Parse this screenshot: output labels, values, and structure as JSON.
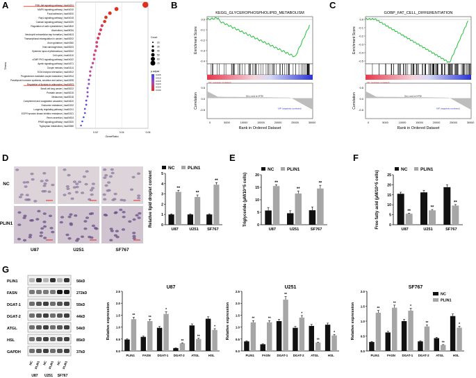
{
  "panel_labels": [
    "A",
    "B",
    "C",
    "D",
    "E",
    "F",
    "G"
  ],
  "panelA": {
    "terms": [
      "PI3K-Akt signaling pathway | hsa04151",
      "MAPK signaling pathway | hsa04010",
      "Focal adhesion | hsa04510",
      "Rap1 signaling pathway | hsa04015",
      "Calcium signaling pathway | hsa04020",
      "Regulation of actin cytoskeleton | hsa04810",
      "Alcoholism | hsa05034",
      "Neutrophil extracellular trap formation | hsa04613",
      "Transcriptional misregulation in cancer | hsa05202",
      "Axon guidance | hsa04360",
      "Viral carcinogenesis | hsa05203",
      "Systemic lupus erythematosus | hsa05322",
      "Cell cycle | hsa04110",
      "cGMP-PKG signaling pathway | hsa04022",
      "Apelin signaling pathway | hsa04371",
      "Oocyte meiosis | hsa04114",
      "ECM-receptor interaction | hsa04512",
      "Progesterone-mediated oocyte maturation | hsa04914",
      "Parathyroid hormone synthesis, secretion and action | hsa04928",
      "Regulation of lipolysis in adipocytes | hsa04923",
      "Small cell lung cancer | hsa05222",
      "Prostate cancer | hsa05215",
      "Melanoma | hsa05218",
      "Complement and coagulation cascades | hsa04610",
      "Endocrine resistance | hsa01522",
      "Longevity regulating pathway | hsa04211",
      "EGFR tyrosine kinase inhibitor resistance | hsa01521",
      "Renin secretion | hsa04924",
      "PPAR signaling pathway | hsa03320",
      "Tryptophan metabolism | hsa00380"
    ],
    "generatio": [
      0.058,
      0.036,
      0.031,
      0.028,
      0.027,
      0.025,
      0.024,
      0.023,
      0.022,
      0.021,
      0.021,
      0.02,
      0.019,
      0.019,
      0.018,
      0.017,
      0.016,
      0.016,
      0.015,
      0.015,
      0.014,
      0.014,
      0.014,
      0.013,
      0.013,
      0.012,
      0.012,
      0.011,
      0.01,
      0.009
    ],
    "count": [
      70,
      44,
      38,
      34,
      33,
      30,
      29,
      28,
      27,
      26,
      26,
      25,
      23,
      23,
      22,
      21,
      20,
      20,
      19,
      19,
      18,
      18,
      17,
      16,
      16,
      15,
      15,
      14,
      13,
      12
    ],
    "xlabel": "GeneRatio",
    "ylabel": "Terms",
    "xticks": [
      "0.02",
      "0.04",
      "0.06"
    ],
    "count_legend_title": "Count",
    "count_legend": [
      "20",
      "30",
      "40",
      "50",
      "60",
      "70"
    ],
    "padj_legend_title": "p.adjust",
    "padj_legend": [
      "0.005",
      "0.010",
      "0.015",
      "0.020",
      "0.025",
      "0.030"
    ]
  },
  "panelB": {
    "title": "KEGG_GLYCEROPHOSPHOLIPID_METABOLISM",
    "ylabel_top": "Enrichment Score",
    "ylabel_bottom": "Correlation",
    "xlabel": "Rank in Ordered Dataset",
    "yticks_top": [
      "0.0",
      "-0.1",
      "-0.2",
      "-0.3",
      "-0.4"
    ],
    "yticks_bottom": [
      "0.5",
      "0.0",
      "-0.5"
    ],
    "xticks": [
      "0",
      "5000",
      "10000",
      "15000",
      "20000",
      "25000",
      "30000"
    ],
    "pos_label": "'NC' (positively correlated)",
    "neg_label": "'SIP' (negatively correlated)",
    "zero_cross": "Zero cross at 14756"
  },
  "panelC": {
    "title": "GOBP_FAT_CELL_DIFFERENTIATION",
    "ylabel_top": "Enrichment Score",
    "ylabel_bottom": "Correlation",
    "xlabel": "Rank in Ordered Dataset",
    "yticks_top": [
      "0.0",
      "-0.1",
      "-0.2",
      "-0.3",
      "-0.4",
      "-0.5"
    ],
    "yticks_bottom": [
      "0.5",
      "0.0",
      "-0.5"
    ],
    "xticks": [
      "0",
      "5000",
      "10000",
      "15000",
      "20000",
      "25000",
      "30000"
    ],
    "pos_label": "'NC' (positively correlated)",
    "neg_label": "'SIP' (negatively correlated)",
    "zero_cross": "Zero cross at 14756"
  },
  "panelD": {
    "row_labels": [
      "NC",
      "PLIN1"
    ],
    "col_labels": [
      "U87",
      "U251",
      "SF767"
    ],
    "chart": {
      "type": "bar",
      "categories": [
        "U87",
        "U251",
        "SF767"
      ],
      "series": [
        {
          "name": "NC",
          "values": [
            1.0,
            1.0,
            1.0
          ]
        },
        {
          "name": "PLIN1",
          "values": [
            3.2,
            2.7,
            3.9
          ]
        }
      ],
      "errors": [
        [
          0.05,
          0.05,
          0.05
        ],
        [
          0.15,
          0.2,
          0.2
        ]
      ],
      "sig": [
        "**",
        "**",
        "**"
      ],
      "ylabel": "Relative lipid droplet content",
      "ylim": [
        0,
        5
      ],
      "yticks": [
        "0",
        "1",
        "2",
        "3",
        "4",
        "5"
      ]
    }
  },
  "panelE": {
    "type": "bar",
    "categories": [
      "U87",
      "U251",
      "SF767"
    ],
    "series": [
      {
        "name": "NC",
        "values": [
          5.7,
          4.6,
          5.8
        ]
      },
      {
        "name": "PLIN1",
        "values": [
          15.5,
          12.5,
          14.5
        ]
      }
    ],
    "errors": [
      [
        1.2,
        1.0,
        1.3
      ],
      [
        0.5,
        1.0,
        1.3
      ]
    ],
    "sig": [
      "**",
      "**",
      "**"
    ],
    "ylabel": "Triglyceride (μM/10^5 cells)",
    "ylim": [
      0,
      20
    ],
    "yticks": [
      "0",
      "5",
      "10",
      "15",
      "20"
    ]
  },
  "panelF": {
    "type": "bar",
    "categories": [
      "U87",
      "U251",
      "SF767"
    ],
    "series": [
      {
        "name": "NC",
        "values": [
          15.5,
          16.2,
          18.8
        ]
      },
      {
        "name": "PLIN1",
        "values": [
          5.5,
          7.2,
          9.6
        ]
      }
    ],
    "errors": [
      [
        0.8,
        1.0,
        1.2
      ],
      [
        0.3,
        0.4,
        0.5
      ]
    ],
    "sig": [
      "**",
      "**",
      "**"
    ],
    "ylabel": "Free fatty acid (μM/10^5 cells)",
    "ylim": [
      0,
      25
    ],
    "yticks": [
      "0",
      "5",
      "10",
      "15",
      "20",
      "25"
    ]
  },
  "panelG": {
    "blot_labels": [
      "PLIN1",
      "FASN",
      "DGAT-1",
      "DGAT-2",
      "ATGL",
      "HSL",
      "GAPDH"
    ],
    "blot_sizes": [
      "56kD",
      "272kD",
      "55kD",
      "44kD",
      "54kD",
      "85kD",
      "37kD"
    ],
    "lane_labels": [
      "NC",
      "PLIN1",
      "NC",
      "PLIN1",
      "NC",
      "PLIN1"
    ],
    "cell_labels": [
      "U87",
      "U251",
      "SF767"
    ],
    "charts": [
      {
        "type": "bar",
        "title": "U87",
        "categories": [
          "PLIN1",
          "FASN",
          "DGAT-1",
          "DGAT-2",
          "ATGL",
          "HSL"
        ],
        "series": [
          {
            "name": "NC",
            "values": [
              0.48,
              0.59,
              0.97,
              0.12,
              1.07,
              1.35
            ]
          },
          {
            "name": "PLIN1",
            "values": [
              1.33,
              1.25,
              1.55,
              0.32,
              0.5,
              0.88
            ]
          }
        ],
        "sig": [
          "**",
          "**",
          "*",
          "**",
          "**",
          "*"
        ],
        "ylabel": "Relative expression",
        "ylim": [
          0,
          2.5
        ],
        "yticks": [
          "0.0",
          "0.5",
          "1.0",
          "1.5",
          "2.0",
          "2.5"
        ]
      },
      {
        "type": "bar",
        "title": "U251",
        "categories": [
          "PLIN1",
          "FASN",
          "DGAT-1",
          "DGAT-2",
          "ATGL",
          "HSL"
        ],
        "series": [
          {
            "name": "NC",
            "values": [
              0.4,
              0.28,
              1.25,
              0.97,
              1.05,
              1.1
            ]
          },
          {
            "name": "PLIN1",
            "values": [
              1.2,
              1.2,
              2.15,
              1.4,
              0.35,
              0.65
            ]
          }
        ],
        "sig": [
          "**",
          "**",
          "**",
          "*",
          "**",
          "*"
        ],
        "ylabel": "Relative expression",
        "ylim": [
          0,
          2.5
        ],
        "yticks": [
          "0.0",
          "0.5",
          "1.0",
          "1.5",
          "2.0",
          "2.5"
        ]
      },
      {
        "type": "bar",
        "title": "SF767",
        "categories": [
          "PLIN1",
          "FASN",
          "DGAT-1",
          "DGAT-2",
          "ATGL",
          "HSL"
        ],
        "series": [
          {
            "name": "NC",
            "values": [
              0.3,
              0.62,
              1.0,
              0.32,
              0.43,
              1.17
            ]
          },
          {
            "name": "PLIN1",
            "values": [
              1.28,
              1.45,
              1.35,
              0.82,
              0.2,
              0.78
            ]
          }
        ],
        "sig": [
          "**",
          "**",
          "*",
          "**",
          "**",
          "*"
        ],
        "ylabel": "Relative expression",
        "ylim": [
          0,
          2.0
        ],
        "yticks": [
          "0.0",
          "0.5",
          "1.0",
          "1.5",
          "2.0"
        ]
      }
    ]
  },
  "legend": {
    "nc": "NC",
    "plin1": "PLIN1"
  },
  "colors": {
    "nc": "#111111",
    "plin1": "#a6a6a6",
    "highlight": "#e0301e"
  }
}
